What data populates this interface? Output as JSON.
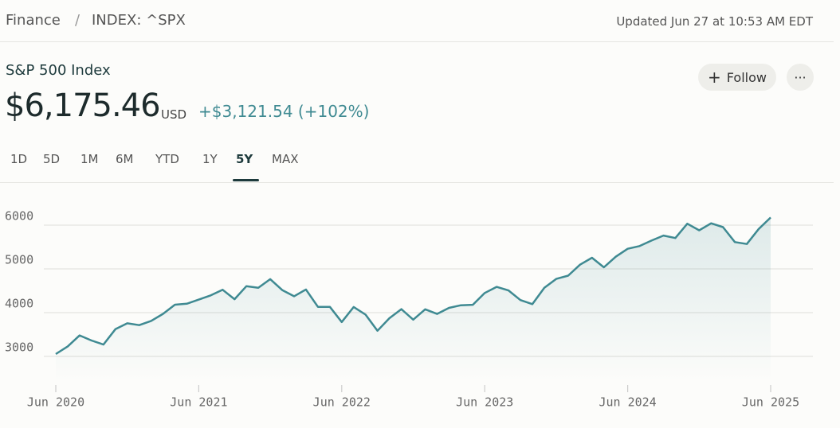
{
  "header": {
    "breadcrumb": [
      "Finance",
      "/",
      "INDEX: ^SPX"
    ],
    "updated": "Updated Jun 27 at 10:53 AM EDT"
  },
  "quote": {
    "name": "S&P 500 Index",
    "price": "$6,175.46",
    "currency": "USD",
    "change": "+$3,121.54 (+102%)"
  },
  "actions": {
    "follow": "Follow",
    "more": "···"
  },
  "tabs": {
    "items": [
      "1D",
      "5D",
      "1M",
      "6M",
      "YTD",
      "1Y",
      "5Y",
      "MAX"
    ],
    "active": 6
  },
  "chart_data": {
    "type": "line",
    "color": "#3f8a92",
    "categories": [
      "Jun 2020",
      null,
      null,
      null,
      null,
      null,
      null,
      null,
      null,
      null,
      null,
      null,
      "Jun 2021",
      null,
      null,
      null,
      null,
      null,
      null,
      null,
      null,
      null,
      null,
      null,
      "Jun 2022",
      null,
      null,
      null,
      null,
      null,
      null,
      null,
      null,
      null,
      null,
      null,
      "Jun 2023",
      null,
      null,
      null,
      null,
      null,
      null,
      null,
      null,
      null,
      null,
      null,
      "Jun 2024",
      null,
      null,
      null,
      null,
      null,
      null,
      null,
      null,
      null,
      null,
      null,
      "Jun 2025"
    ],
    "values": [
      3054,
      3230,
      3480,
      3363,
      3270,
      3622,
      3756,
      3714,
      3811,
      3973,
      4181,
      4204,
      4298,
      4395,
      4523,
      4308,
      4605,
      4567,
      4766,
      4516,
      4374,
      4530,
      4132,
      4132,
      3785,
      4130,
      3955,
      3586,
      3872,
      4080,
      3840,
      4077,
      3970,
      4109,
      4169,
      4180,
      4450,
      4589,
      4508,
      4288,
      4194,
      4568,
      4770,
      4846,
      5096,
      5254,
      5036,
      5278,
      5460,
      5522,
      5648,
      5762,
      5705,
      6032,
      5882,
      6041,
      5955,
      5612,
      5569,
      5912,
      6175
    ],
    "ylim": [
      2400,
      6600
    ],
    "yticks": [
      3000,
      4000,
      5000,
      6000
    ],
    "grid": true
  }
}
